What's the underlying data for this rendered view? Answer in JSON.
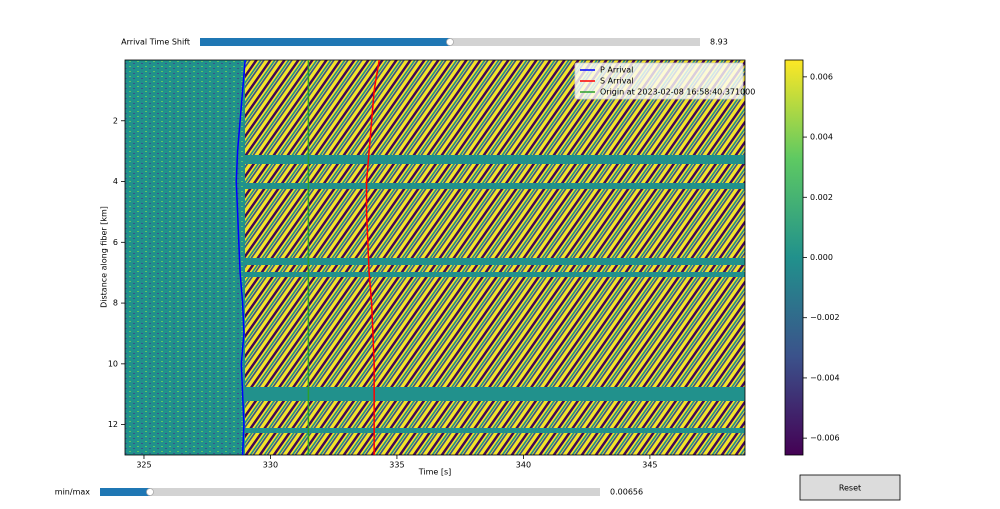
{
  "chart_data": {
    "type": "line",
    "xlabel": "Time [s]",
    "ylabel": "Distance along fiber [km]",
    "xlim": [
      324.25,
      348.76
    ],
    "ylim": [
      13,
      0
    ],
    "xticks": [
      325,
      330,
      335,
      340,
      345
    ],
    "yticks": [
      2,
      4,
      6,
      8,
      10,
      12
    ],
    "legend": "upper right",
    "series": [
      {
        "name": "P Arrival",
        "color": "#0000ff",
        "x": [
          329.0,
          328.9,
          328.8,
          328.7,
          328.65,
          328.7,
          328.75,
          328.8,
          328.9,
          328.95,
          328.85,
          328.9,
          328.95,
          328.9
        ],
        "values": [
          0,
          1,
          2,
          3,
          4,
          5,
          6,
          7,
          8,
          9,
          10,
          11,
          12,
          13
        ]
      },
      {
        "name": "S Arrival",
        "color": "#ff0000",
        "x": [
          334.3,
          334.1,
          334.0,
          333.9,
          333.8,
          333.8,
          333.85,
          333.9,
          334.0,
          334.05,
          334.1,
          334.1,
          334.1,
          334.1
        ],
        "values": [
          0,
          1,
          2,
          3,
          4,
          5,
          6,
          7,
          8,
          9,
          10,
          11,
          12,
          13
        ]
      },
      {
        "name": "Origin at 2023-02-08 16:58:40.371000",
        "color": "#2ca02c",
        "x": [
          331.5,
          331.5
        ],
        "values": [
          0,
          13
        ]
      }
    ],
    "colorbar": {
      "lim": [
        -0.00656,
        0.00656
      ],
      "colors": [
        "#440154",
        "#3b528b",
        "#21918c",
        "#5ec962",
        "#fde725"
      ],
      "ticks": [
        {
          "value": -0.006,
          "label": "−0.006"
        },
        {
          "value": -0.004,
          "label": "−0.004"
        },
        {
          "value": -0.002,
          "label": "−0.002"
        },
        {
          "value": 0,
          "label": "0.000"
        },
        {
          "value": 0.002,
          "label": "0.002"
        },
        {
          "value": 0.004,
          "label": "0.004"
        },
        {
          "value": 0.006,
          "label": "0.006"
        }
      ]
    }
  },
  "sliders": [
    {
      "label": "Arrival Time Shift",
      "value": 8.93,
      "xlim": [
        0,
        17.86
      ],
      "color": "#1f77b4"
    },
    {
      "label": "min/max",
      "value": 0.00656,
      "xlim": [
        0,
        0.0656
      ],
      "color": "#1f77b4"
    }
  ],
  "button": {
    "label": "Reset"
  }
}
